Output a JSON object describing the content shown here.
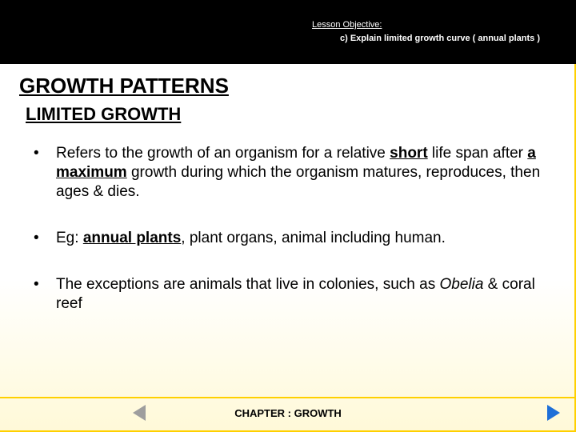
{
  "colors": {
    "header_bg": "#000000",
    "slide_border": "#ffd000",
    "nav_next": "#1e6fd8",
    "nav_prev": "#9e9e9e",
    "gradient_bottom": "#fff9d8",
    "text": "#000000",
    "header_text": "#ffffff"
  },
  "header": {
    "objective_label": "Lesson Objective:",
    "objective_text": "c)  Explain limited growth curve ( annual plants )"
  },
  "title": "GROWTH PATTERNS",
  "subtitle": "LIMITED GROWTH ",
  "bullets": [
    {
      "segments": [
        {
          "t": "Refers to the growth of an organism for a relative ",
          "s": ""
        },
        {
          "t": "short",
          "s": "ub"
        },
        {
          "t": " life span after ",
          "s": ""
        },
        {
          "t": "a maximum",
          "s": "ub"
        },
        {
          "t": " growth during which the organism matures, reproduces, then ages & dies.",
          "s": ""
        }
      ]
    },
    {
      "segments": [
        {
          "t": "Eg: ",
          "s": ""
        },
        {
          "t": "annual plants",
          "s": "ub"
        },
        {
          "t": ", plant organs, animal including human.",
          "s": ""
        }
      ]
    },
    {
      "segments": [
        {
          "t": "The exceptions are animals that live in colonies, such as ",
          "s": ""
        },
        {
          "t": "Obelia",
          "s": "i"
        },
        {
          "t": " & coral reef",
          "s": ""
        }
      ]
    }
  ],
  "footer": "CHAPTER : GROWTH",
  "nav": {
    "prev_name": "previous-slide",
    "next_name": "next-slide"
  }
}
